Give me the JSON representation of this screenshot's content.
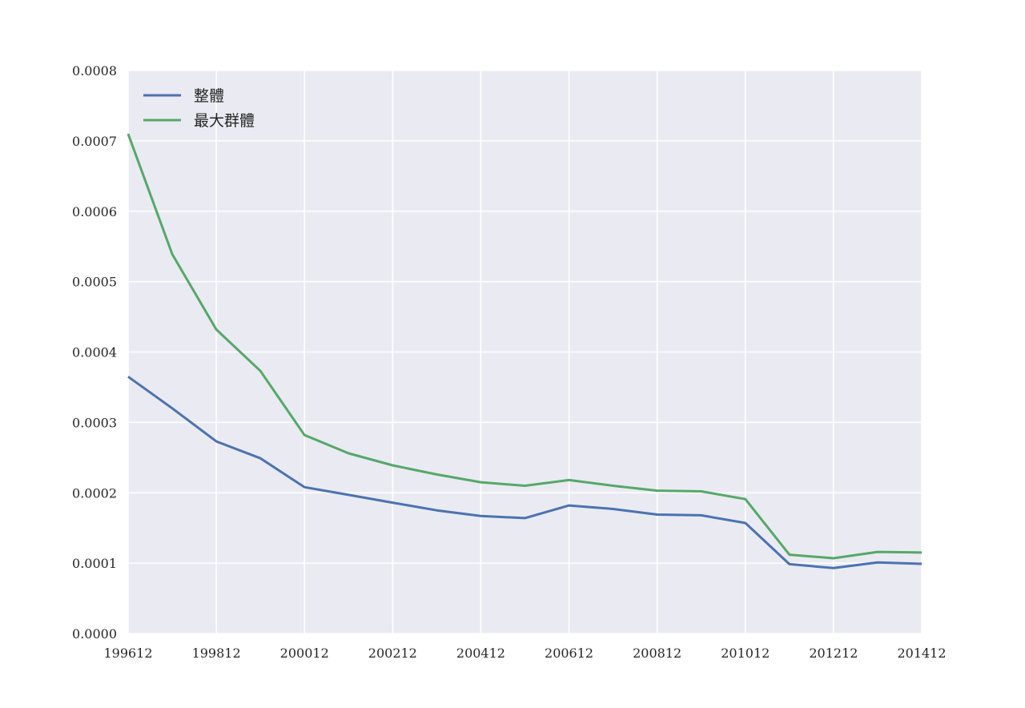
{
  "chart_data": {
    "type": "line",
    "title": "",
    "xlabel": "",
    "ylabel": "",
    "x": [
      199612,
      199712,
      199812,
      199912,
      200012,
      200112,
      200212,
      200312,
      200412,
      200512,
      200612,
      200712,
      200812,
      200912,
      201012,
      201112,
      201212,
      201312,
      201412
    ],
    "x_ticks": [
      "199612",
      "199812",
      "200012",
      "200212",
      "200412",
      "200612",
      "200812",
      "201012",
      "201212",
      "201412"
    ],
    "y_ticks": [
      "0.0000",
      "0.0001",
      "0.0002",
      "0.0003",
      "0.0004",
      "0.0005",
      "0.0006",
      "0.0007",
      "0.0008"
    ],
    "ylim": [
      0,
      0.0008
    ],
    "grid": true,
    "legend_position": "top-left",
    "background": "#EAEAF2",
    "series": [
      {
        "name": "整體",
        "color": "#4C72B0",
        "values": [
          0.000365,
          0.00032,
          0.000273,
          0.000249,
          0.000208,
          0.000197,
          0.000186,
          0.000175,
          0.000167,
          0.000164,
          0.000182,
          0.000177,
          0.000169,
          0.000168,
          0.000157,
          9.85e-05,
          9.3e-05,
          0.000101,
          9.9e-05
        ]
      },
      {
        "name": "最大群體",
        "color": "#55A868",
        "values": [
          0.00071,
          0.000539,
          0.000432,
          0.000373,
          0.000282,
          0.000256,
          0.000239,
          0.000226,
          0.000215,
          0.00021,
          0.000218,
          0.00021,
          0.000203,
          0.000202,
          0.000191,
          0.000112,
          0.000107,
          0.000116,
          0.000115
        ]
      }
    ]
  }
}
